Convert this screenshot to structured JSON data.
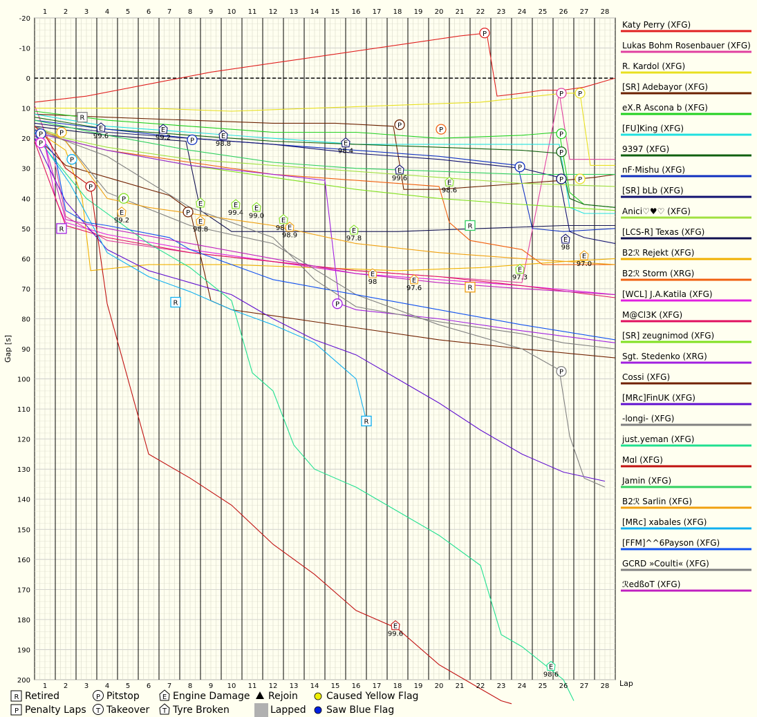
{
  "chart_data": {
    "type": "line",
    "ylabel": "Gap [s]",
    "xlabel": "Lap",
    "xlim": [
      0.5,
      28.5
    ],
    "ylim": [
      -20,
      200
    ],
    "y_inverted": true,
    "grid": true,
    "x_ticks": [
      "1",
      "2",
      "3",
      "4",
      "5",
      "6",
      "7",
      "8",
      "9",
      "10",
      "11",
      "12",
      "13",
      "14",
      "15",
      "16",
      "17",
      "18",
      "19",
      "20",
      "21",
      "22",
      "23",
      "24",
      "25",
      "26",
      "27",
      "28"
    ],
    "y_ticks": [
      "-20",
      "-10",
      "0",
      "10",
      "20",
      "30",
      "40",
      "50",
      "60",
      "70",
      "80",
      "90",
      "100",
      "110",
      "120",
      "130",
      "140",
      "150",
      "160",
      "170",
      "180",
      "190",
      "200"
    ],
    "legend_position": "right",
    "series": [
      {
        "name": "Katy Perry (XFG)",
        "color": "#e02020",
        "x": [
          0.5,
          3,
          6,
          9,
          12,
          15,
          18,
          21,
          22.3,
          22.8,
          24,
          25,
          26,
          27,
          28.5
        ],
        "y": [
          8,
          6,
          2,
          -2,
          -5,
          -8,
          -11,
          -14,
          -15,
          6,
          5,
          4,
          4,
          3,
          0
        ]
      },
      {
        "name": "Lukas Bohm Rosenbauer (XFG)",
        "color": "#e040a0",
        "x": [
          0.5,
          1,
          1.3,
          2,
          4,
          8,
          12,
          16,
          20,
          24,
          25.8,
          26.3,
          27,
          28.5
        ],
        "y": [
          9,
          18,
          22,
          46,
          54,
          58,
          61,
          64,
          66,
          68,
          5,
          27,
          27,
          27
        ]
      },
      {
        "name": "R. Kardol (XFG)",
        "color": "#e8e020",
        "x": [
          0.5,
          3,
          6,
          10,
          14,
          18,
          22,
          26,
          26.8,
          27.3,
          28.5
        ],
        "y": [
          10,
          10,
          10,
          11,
          10,
          9,
          8,
          5,
          5,
          29,
          29
        ]
      },
      {
        "name": "[SR] Adebayor (XFG)",
        "color": "#6b2000",
        "x": [
          0.5,
          4,
          8,
          12,
          15,
          17.8,
          18.3,
          20,
          24,
          26,
          27.5,
          28.5
        ],
        "y": [
          12,
          13,
          14,
          15,
          15,
          16,
          37,
          37,
          35,
          34,
          33,
          32
        ]
      },
      {
        "name": "eX.R Ascona b (XFG)",
        "color": "#20d020",
        "x": [
          0.5,
          4,
          8,
          12,
          16,
          20,
          24,
          25.8,
          26.3,
          27,
          28.5
        ],
        "y": [
          11,
          14,
          16,
          18,
          18,
          20,
          19,
          18,
          38,
          42,
          43
        ]
      },
      {
        "name": "[FU]King (XFG)",
        "color": "#20e0e0",
        "x": [
          0.5,
          4,
          8,
          12,
          16,
          20,
          24,
          25.8,
          26.3,
          27,
          28.5
        ],
        "y": [
          12,
          16,
          18,
          20,
          22,
          22,
          22,
          22,
          43,
          45,
          45
        ]
      },
      {
        "name": "9397 (XFG)",
        "color": "#106010",
        "x": [
          0.5,
          4,
          8,
          12,
          16,
          20,
          24,
          25.8,
          26.3,
          27,
          28.5
        ],
        "y": [
          13,
          17,
          19,
          21,
          22,
          23,
          24,
          25,
          40,
          42,
          43
        ]
      },
      {
        "name": "nF·Mishu (XFG)",
        "color": "#1030c0",
        "x": [
          0.5,
          4,
          8,
          12,
          16,
          20,
          23.8,
          24.5,
          26,
          28.5
        ],
        "y": [
          14,
          17,
          20,
          22,
          24,
          26,
          29,
          50,
          51,
          50
        ]
      },
      {
        "name": "[SR] bLb (XFG)",
        "color": "#101070",
        "x": [
          0.5,
          4,
          8,
          12,
          16,
          20,
          24,
          25.8,
          26.3,
          27,
          28.5
        ],
        "y": [
          15,
          18,
          20,
          22,
          25,
          27,
          30,
          33,
          51,
          53,
          55
        ]
      },
      {
        "name": "Anici♡♥♡ (XFG)",
        "color": "#a0e040",
        "x": [
          0.5,
          2,
          4,
          8,
          12,
          16,
          20,
          24,
          28.5
        ],
        "y": [
          16,
          20,
          23,
          27,
          29,
          31,
          33,
          35,
          36
        ]
      },
      {
        "name": "[LCS-R] Texas (XFG)",
        "color": "#101050",
        "x": [
          0.5,
          4,
          7.8,
          8.5,
          10,
          14,
          18,
          22,
          26,
          28.5
        ],
        "y": [
          16,
          19,
          21,
          44,
          51,
          51,
          51,
          50,
          49,
          49
        ]
      },
      {
        "name": "B2ℛ Rejekt (XFG)",
        "color": "#f0b000",
        "x": [
          0.5,
          2,
          2.8,
          3.2,
          6,
          10,
          14,
          18,
          22,
          26,
          28.5
        ],
        "y": [
          17,
          24,
          40,
          64,
          62,
          62,
          63,
          64,
          63,
          61,
          60
        ]
      },
      {
        "name": "B2ℛ Storm (XRG)",
        "color": "#f06010",
        "x": [
          0.5,
          4,
          8,
          12,
          16,
          20,
          20.5,
          21.5,
          24,
          25,
          28.5
        ],
        "y": [
          18,
          24,
          28,
          32,
          34,
          36,
          48,
          54,
          57,
          62,
          62
        ]
      },
      {
        "name": "[WCL] J.A.Katila (XFG)",
        "color": "#e020e0",
        "x": [
          0.5,
          1,
          1.5,
          2,
          4,
          8,
          12,
          16,
          20,
          24,
          28.5
        ],
        "y": [
          20,
          22,
          40,
          48,
          52,
          57,
          61,
          65,
          67,
          69,
          72
        ]
      },
      {
        "name": "M@Cl3K (XFG)",
        "color": "#e01060",
        "x": [
          0.5,
          2,
          4,
          8,
          12,
          16,
          20,
          24,
          28.5
        ],
        "y": [
          21,
          49,
          53,
          58,
          61,
          64,
          66,
          69,
          73
        ]
      },
      {
        "name": "[SR] zeugnimod (XFG)",
        "color": "#80e020",
        "x": [
          0.5,
          4,
          8,
          12,
          16,
          20,
          24,
          28.5
        ],
        "y": [
          18,
          24,
          29,
          33,
          37,
          40,
          42,
          44
        ]
      },
      {
        "name": "Sgt. Stedenko (XRG)",
        "color": "#a020e0",
        "x": [
          0.5,
          4,
          8,
          12,
          14.5,
          15.2,
          16,
          20,
          24,
          28.5
        ],
        "y": [
          18,
          24,
          29,
          32,
          34,
          75,
          77,
          80,
          84,
          88
        ]
      },
      {
        "name": "Cossi (XFG)",
        "color": "#702000",
        "x": [
          0.5,
          2,
          4,
          7,
          8,
          9,
          10,
          12,
          16,
          20,
          24,
          28.5
        ],
        "y": [
          19,
          29,
          33,
          39,
          44,
          74,
          77,
          79,
          83,
          87,
          90,
          93
        ]
      },
      {
        "name": "[MRc]FinUK (XFG)",
        "color": "#6010d0",
        "x": [
          0.5,
          2,
          4,
          6,
          8,
          10,
          12,
          14,
          16,
          18,
          20,
          22,
          24,
          26,
          28
        ],
        "y": [
          20,
          41,
          57,
          64,
          68,
          72,
          80,
          87,
          92,
          100,
          108,
          117,
          125,
          131,
          134
        ]
      },
      {
        "name": "-longi- (XFG)",
        "color": "#808080",
        "x": [
          0.5,
          2,
          4,
          8,
          12,
          16,
          20,
          24,
          25.8,
          26.3,
          27,
          28
        ],
        "y": [
          16,
          21,
          38,
          49,
          55,
          72,
          82,
          90,
          97,
          119,
          133,
          136
        ]
      },
      {
        "name": "just.yeman (XFG)",
        "color": "#20e090",
        "x": [
          0.5,
          3,
          6,
          8,
          10,
          11,
          12,
          13,
          14,
          16,
          18,
          20,
          22,
          23,
          24,
          26,
          26.5
        ],
        "y": [
          19,
          40,
          55,
          63,
          74,
          98,
          104,
          122,
          130,
          136,
          144,
          152,
          162,
          185,
          189,
          200,
          207
        ]
      },
      {
        "name": "Mɑl (XFG)",
        "color": "#c01010",
        "x": [
          0.5,
          1,
          2,
          3.2,
          4,
          5,
          6,
          8,
          10,
          12,
          14,
          16,
          18,
          20,
          22,
          23,
          23.5
        ],
        "y": [
          16,
          19,
          30,
          36,
          75,
          100,
          125,
          133,
          142,
          155,
          165,
          177,
          183,
          195,
          203,
          207,
          208
        ]
      },
      {
        "name": "Jamin (XFG)",
        "color": "#30d060",
        "x": [
          0.5,
          4,
          8,
          12,
          16,
          20,
          24,
          28.5
        ],
        "y": [
          14,
          19,
          24,
          28,
          30,
          31,
          32,
          32
        ]
      },
      {
        "name": "B2ℛ Sarlin (XFG)",
        "color": "#f0a010",
        "x": [
          0.5,
          1.5,
          2,
          4,
          6,
          8,
          10,
          12,
          16,
          20,
          24,
          28.5
        ],
        "y": [
          17,
          19,
          21,
          40,
          43,
          45,
          47,
          49,
          55,
          58,
          60,
          62
        ]
      },
      {
        "name": "[MRc] xabales (XFG)",
        "color": "#10b0f0",
        "x": [
          0.5,
          1.5,
          2.2,
          4,
          6,
          8,
          10,
          12,
          14,
          16,
          16.5
        ],
        "y": [
          18,
          28,
          35,
          58,
          66,
          71,
          77,
          82,
          88,
          100,
          114
        ]
      },
      {
        "name": "[FFM]^^6Payson (XFG)",
        "color": "#1050f0",
        "x": [
          0.5,
          1.5,
          2,
          3,
          4,
          7,
          8,
          12,
          16,
          20,
          24,
          28.5
        ],
        "y": [
          17,
          26,
          44,
          48,
          49,
          53,
          57,
          67,
          72,
          77,
          82,
          87
        ]
      },
      {
        "name": "GCRD »Coulti« (XFG)",
        "color": "#808080",
        "x": [
          0.5,
          4,
          8,
          12,
          14,
          16,
          20,
          24,
          26,
          28.5
        ],
        "y": [
          17,
          26,
          43,
          53,
          67,
          76,
          81,
          85,
          88,
          90
        ]
      },
      {
        "name": "ℛedßoT (XFG)",
        "color": "#c020c0",
        "x": [
          0.5,
          1,
          2,
          4,
          8,
          12,
          16,
          20,
          24,
          28.5
        ],
        "y": [
          19,
          22,
          47,
          50,
          55,
          60,
          65,
          68,
          70,
          72
        ]
      }
    ],
    "markers": [
      {
        "type": "P",
        "x": 22.2,
        "y": -15,
        "color": "#e02020"
      },
      {
        "type": "P",
        "x": 25.9,
        "y": 5,
        "color": "#e040a0"
      },
      {
        "type": "P",
        "x": 26.8,
        "y": 5,
        "color": "#e8e020"
      },
      {
        "type": "P",
        "x": 18.1,
        "y": 15.5,
        "color": "#6b2000"
      },
      {
        "type": "P",
        "x": 20.1,
        "y": 17,
        "color": "#f06010"
      },
      {
        "type": "P",
        "x": 25.9,
        "y": 18.5,
        "color": "#20d020"
      },
      {
        "type": "P",
        "x": 25.9,
        "y": 24.5,
        "color": "#106010"
      },
      {
        "type": "P",
        "x": 23.9,
        "y": 29.5,
        "color": "#1030c0"
      },
      {
        "type": "P",
        "x": 25.9,
        "y": 33.5,
        "color": "#101070"
      },
      {
        "type": "P",
        "x": 26.8,
        "y": 33.5,
        "color": "#e8e020"
      },
      {
        "type": "P",
        "x": 8.1,
        "y": 20.5,
        "color": "#1030c0"
      },
      {
        "type": "P",
        "x": 0.8,
        "y": 18.5,
        "color": "#1030c0"
      },
      {
        "type": "P",
        "x": 0.8,
        "y": 21.5,
        "color": "#e020e0"
      },
      {
        "type": "P",
        "x": 1.8,
        "y": 18,
        "color": "#f0b000"
      },
      {
        "type": "P",
        "x": 2.3,
        "y": 27,
        "color": "#10b0f0"
      },
      {
        "type": "P",
        "x": 3.2,
        "y": 36,
        "color": "#c01010"
      },
      {
        "type": "P",
        "x": 4.8,
        "y": 40,
        "color": "#80e020"
      },
      {
        "type": "P",
        "x": 7.9,
        "y": 44.5,
        "color": "#702000"
      },
      {
        "type": "P",
        "x": 15.1,
        "y": 75,
        "color": "#a020e0"
      },
      {
        "type": "P",
        "x": 25.9,
        "y": 97.5,
        "color": "#808080"
      },
      {
        "type": "R",
        "x": 2.8,
        "y": 13,
        "color": "#808080"
      },
      {
        "type": "R",
        "x": 1.8,
        "y": 50,
        "color": "#a020e0"
      },
      {
        "type": "R",
        "x": 7.3,
        "y": 74.5,
        "color": "#10b0f0"
      },
      {
        "type": "R",
        "x": 16.5,
        "y": 114,
        "color": "#10b0f0"
      },
      {
        "type": "R",
        "x": 21.5,
        "y": 49,
        "color": "#30d060"
      },
      {
        "type": "R",
        "x": 21.5,
        "y": 69.5,
        "color": "#f0a010"
      },
      {
        "type": "E",
        "x": 3.7,
        "y": 16.5,
        "color": "#101070",
        "label": "99.6"
      },
      {
        "type": "E",
        "x": 6.7,
        "y": 17,
        "color": "#101070",
        "label": "99.2"
      },
      {
        "type": "E",
        "x": 9.6,
        "y": 19,
        "color": "#101070",
        "label": "98.8"
      },
      {
        "type": "E",
        "x": 15.5,
        "y": 21.5,
        "color": "#101070",
        "label": "98.4"
      },
      {
        "type": "E",
        "x": 18.1,
        "y": 30.5,
        "color": "#101070",
        "label": "99.6"
      },
      {
        "type": "E",
        "x": 26.1,
        "y": 53.5,
        "color": "#101070",
        "label": "98"
      },
      {
        "type": "E",
        "x": 4.7,
        "y": 44.5,
        "color": "#f0a010",
        "label": "99.2"
      },
      {
        "type": "E",
        "x": 8.5,
        "y": 47.5,
        "color": "#f0a010",
        "label": "98.8"
      },
      {
        "type": "E",
        "x": 8.5,
        "y": 41.5,
        "color": "#80e020",
        "label": ""
      },
      {
        "type": "E",
        "x": 10.2,
        "y": 42,
        "color": "#80e020",
        "label": "99.4"
      },
      {
        "type": "E",
        "x": 11.2,
        "y": 43,
        "color": "#80e020",
        "label": "99.0"
      },
      {
        "type": "E",
        "x": 12.5,
        "y": 47,
        "color": "#80e020",
        "label": "98.8"
      },
      {
        "type": "E",
        "x": 12.8,
        "y": 49.5,
        "color": "#f0a010",
        "label": "98.9"
      },
      {
        "type": "E",
        "x": 15.9,
        "y": 50.5,
        "color": "#80e020",
        "label": "97.8"
      },
      {
        "type": "E",
        "x": 16.8,
        "y": 65,
        "color": "#f0a010",
        "label": "98"
      },
      {
        "type": "E",
        "x": 18.8,
        "y": 67,
        "color": "#f0a010",
        "label": "97.6"
      },
      {
        "type": "E",
        "x": 20.5,
        "y": 34.5,
        "color": "#80e020",
        "label": "98.6"
      },
      {
        "type": "E",
        "x": 23.9,
        "y": 63.5,
        "color": "#80e020",
        "label": "97.3"
      },
      {
        "type": "E",
        "x": 27.0,
        "y": 59,
        "color": "#f0a010",
        "label": "97.0"
      },
      {
        "type": "E",
        "x": 17.9,
        "y": 182,
        "color": "#c01010",
        "label": "99.6"
      },
      {
        "type": "E",
        "x": 25.4,
        "y": 195.5,
        "color": "#20e090",
        "label": "98.6"
      }
    ]
  },
  "legend_key": [
    {
      "symbol": "R",
      "label": "Retired"
    },
    {
      "symbol": "P",
      "label": "Penalty Laps"
    },
    {
      "symbol": "P",
      "label": "Pitstop"
    },
    {
      "symbol": "T",
      "label": "Takeover"
    },
    {
      "symbol": "E",
      "label": "Engine Damage"
    },
    {
      "symbol": "T",
      "label": "Tyre Broken"
    },
    {
      "symbol": "triangle",
      "label": "Rejoin"
    },
    {
      "symbol": "gray-square",
      "label": "Lapped"
    },
    {
      "symbol": "yellow-dot",
      "label": "Caused Yellow Flag",
      "color": "#f0f000"
    },
    {
      "symbol": "blue-dot",
      "label": "Saw Blue Flag",
      "color": "#0020e0"
    }
  ]
}
